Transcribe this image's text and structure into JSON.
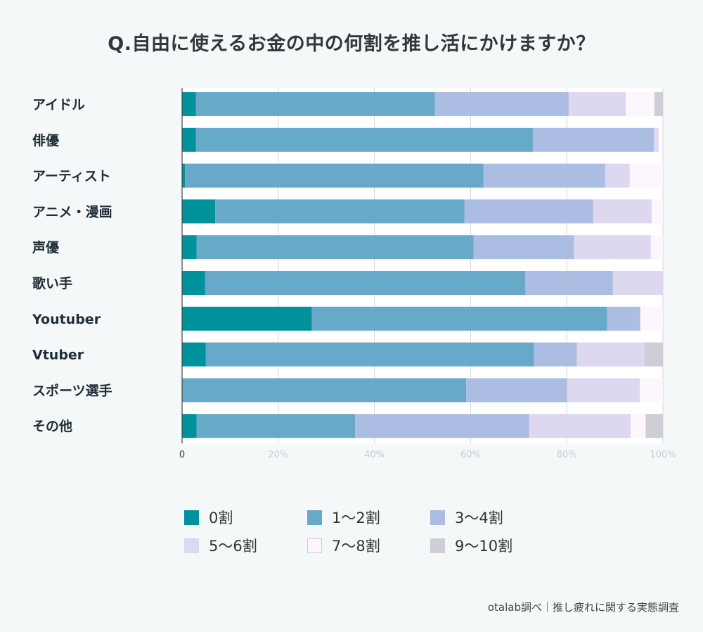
{
  "chart_data": {
    "type": "bar",
    "orientation": "horizontal",
    "stacked": true,
    "title": "Q.自由に使えるお金の中の何割を推し活にかけますか？",
    "xlabel": "",
    "ylabel": "",
    "xlim": [
      0,
      100
    ],
    "x_ticks": [
      "0",
      "20%",
      "40%",
      "60%",
      "80%",
      "100%"
    ],
    "grid": true,
    "legend_position": "bottom",
    "categories": [
      "アイドル",
      "俳優",
      "アーティスト",
      "アニメ・漫画",
      "声優",
      "歌い手",
      "Youtuber",
      "Vtuber",
      "スポーツ選手",
      "その他"
    ],
    "series": [
      {
        "name": "0割",
        "color": "#00929c",
        "values": [
          2.9,
          2.9,
          0.6,
          6.9,
          3.0,
          4.8,
          27.0,
          4.9,
          0.0,
          3.0
        ]
      },
      {
        "name": "1〜2割",
        "color": "#67a9c9",
        "values": [
          49.7,
          70.1,
          62.1,
          51.8,
          57.6,
          66.6,
          61.4,
          68.3,
          59.1,
          33.0
        ]
      },
      {
        "name": "3〜4割",
        "color": "#abbde2",
        "values": [
          27.8,
          25.1,
          25.3,
          26.8,
          20.9,
          18.2,
          6.9,
          8.9,
          21.0,
          36.2
        ]
      },
      {
        "name": "5〜6割",
        "color": "#ddd8f0",
        "values": [
          11.9,
          1.0,
          5.1,
          12.2,
          16.0,
          10.4,
          0.0,
          14.1,
          15.1,
          21.1
        ]
      },
      {
        "name": "7〜8割",
        "color": "#fdf6fc",
        "values": [
          5.9,
          0.3,
          6.9,
          2.3,
          2.5,
          0.0,
          4.7,
          0.0,
          4.8,
          3.1
        ]
      },
      {
        "name": "9〜10割",
        "color": "#cfcdd6",
        "values": [
          1.8,
          0.0,
          0.0,
          0.0,
          0.0,
          0.0,
          0.0,
          3.8,
          0.0,
          3.6
        ]
      }
    ]
  },
  "source_note": "otalab調べ｜推し疲れに関する実態調査"
}
